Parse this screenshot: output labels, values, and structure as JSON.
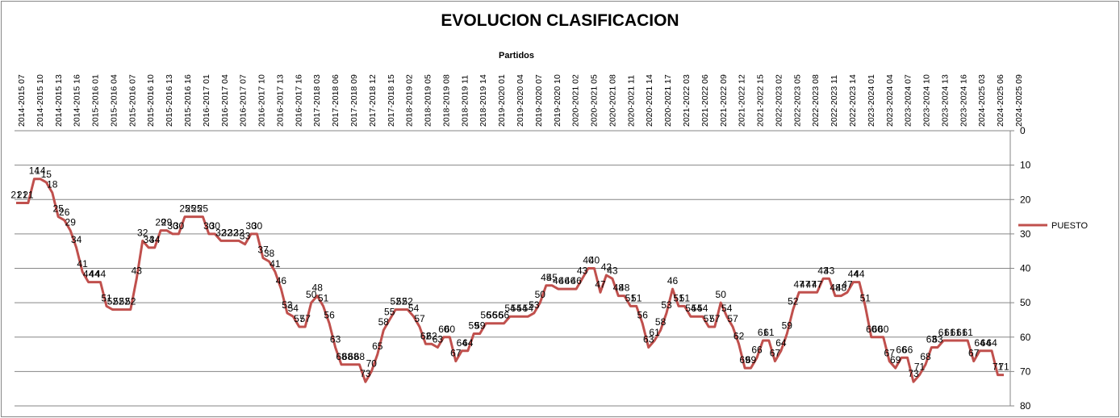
{
  "chart_data": {
    "type": "line",
    "title": "EVOLUCION CLASIFICACION",
    "xlabel": "Partidos",
    "ylabel": "",
    "ylim": [
      0,
      80
    ],
    "y_reversed": true,
    "y_ticks": [
      0,
      10,
      20,
      30,
      40,
      50,
      60,
      70,
      80
    ],
    "x_axis_position": "top",
    "y_axis_position": "right",
    "grid": true,
    "legend": "right",
    "x_tick_labels": [
      "2014-2015 07",
      "2014-2015 10",
      "2014-2015 13",
      "2014-2015 16",
      "2015-2016 01",
      "2015-2016 04",
      "2015-2016 07",
      "2015-2016 10",
      "2015-2016 13",
      "2015-2016 16",
      "2016-2017 01",
      "2016-2017 04",
      "2016-2017 07",
      "2016-2017 10",
      "2016-2017 13",
      "2016-2017 16",
      "2017-2018 03",
      "2017-2018 06",
      "2017-2018 09",
      "2017-2018 12",
      "2017-2018 15",
      "2018-2019 02",
      "2018-2019 05",
      "2018-2019 08",
      "2018-2019 11",
      "2018-2019 14",
      "2019-2020 01",
      "2019-2020 04",
      "2019-2020 07",
      "2019-2020 10",
      "2020-2021 02",
      "2020-2021 05",
      "2020-2021 08",
      "2020-2021 11",
      "2020-2021 14",
      "2020-2021 17",
      "2021-2022 03",
      "2021-2022 06",
      "2021-2022 09",
      "2021-2022 12",
      "2021-2022 15",
      "2022-2023 02",
      "2022-2023 05",
      "2022-2023 08",
      "2022-2023 11",
      "2022-2023 14",
      "2023-2024 01",
      "2023-2024 04",
      "2023-2024 07",
      "2023-2024 10",
      "2023-2024 13",
      "2023-2024 16",
      "2024-2025 03",
      "2024-2025 06",
      "2024-2025 09"
    ],
    "series": [
      {
        "name": "PUESTO",
        "color": "#c0504d",
        "values": [
          21,
          21,
          21,
          14,
          14,
          15,
          18,
          25,
          26,
          29,
          34,
          41,
          44,
          44,
          44,
          51,
          52,
          52,
          52,
          52,
          43,
          32,
          34,
          34,
          29,
          29,
          30,
          30,
          25,
          25,
          25,
          25,
          30,
          30,
          32,
          32,
          32,
          32,
          33,
          30,
          30,
          37,
          38,
          41,
          46,
          53,
          54,
          57,
          57,
          50,
          48,
          51,
          56,
          63,
          68,
          68,
          68,
          68,
          73,
          70,
          65,
          58,
          55,
          52,
          52,
          52,
          54,
          57,
          62,
          62,
          63,
          60,
          60,
          67,
          64,
          64,
          59,
          59,
          56,
          56,
          56,
          56,
          54,
          54,
          54,
          54,
          53,
          50,
          45,
          45,
          46,
          46,
          46,
          46,
          43,
          40,
          40,
          47,
          42,
          43,
          48,
          48,
          51,
          51,
          56,
          63,
          61,
          58,
          53,
          46,
          51,
          51,
          54,
          54,
          54,
          57,
          57,
          50,
          54,
          57,
          62,
          69,
          69,
          66,
          61,
          61,
          67,
          64,
          59,
          52,
          47,
          47,
          47,
          47,
          43,
          43,
          48,
          48,
          47,
          44,
          44,
          51,
          60,
          60,
          60,
          67,
          69,
          66,
          66,
          73,
          71,
          68,
          63,
          63,
          61,
          61,
          61,
          61,
          61,
          67,
          64,
          64,
          64,
          71,
          71
        ]
      }
    ]
  }
}
